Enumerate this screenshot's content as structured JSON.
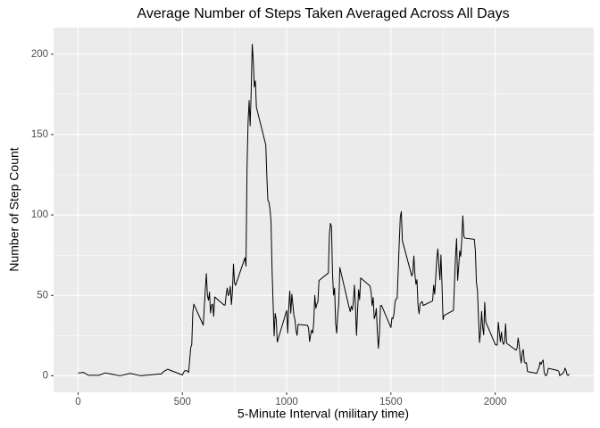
{
  "chart_data": {
    "type": "line",
    "title": "Average Number of Steps Taken Averaged Across All Days",
    "x_label": "5-Minute Interval (military time)",
    "y_label": "Number of Step Count",
    "x": [
      0,
      25,
      50,
      100,
      130,
      200,
      250,
      300,
      400,
      410,
      430,
      440,
      450,
      500,
      510,
      520,
      530,
      540,
      545,
      550,
      555,
      600,
      610,
      615,
      620,
      625,
      630,
      635,
      640,
      645,
      650,
      655,
      700,
      705,
      710,
      715,
      720,
      725,
      730,
      735,
      740,
      745,
      750,
      755,
      800,
      805,
      810,
      815,
      820,
      825,
      830,
      835,
      840,
      845,
      850,
      855,
      900,
      905,
      910,
      915,
      920,
      925,
      930,
      935,
      940,
      945,
      950,
      955,
      1000,
      1005,
      1010,
      1015,
      1020,
      1025,
      1030,
      1035,
      1040,
      1045,
      1050,
      1055,
      1100,
      1105,
      1110,
      1115,
      1120,
      1125,
      1130,
      1135,
      1140,
      1145,
      1150,
      1155,
      1200,
      1205,
      1210,
      1215,
      1220,
      1225,
      1230,
      1235,
      1240,
      1245,
      1250,
      1255,
      1300,
      1305,
      1310,
      1315,
      1320,
      1325,
      1330,
      1335,
      1340,
      1345,
      1350,
      1355,
      1400,
      1405,
      1410,
      1415,
      1420,
      1425,
      1430,
      1435,
      1440,
      1445,
      1450,
      1455,
      1500,
      1505,
      1510,
      1515,
      1520,
      1525,
      1530,
      1535,
      1540,
      1545,
      1550,
      1555,
      1600,
      1605,
      1610,
      1615,
      1620,
      1625,
      1630,
      1635,
      1640,
      1645,
      1650,
      1655,
      1700,
      1705,
      1710,
      1715,
      1720,
      1725,
      1730,
      1735,
      1740,
      1745,
      1750,
      1755,
      1800,
      1805,
      1810,
      1815,
      1820,
      1825,
      1830,
      1835,
      1840,
      1845,
      1850,
      1855,
      1900,
      1905,
      1910,
      1915,
      1920,
      1925,
      1930,
      1935,
      1940,
      1945,
      1950,
      1955,
      2000,
      2005,
      2010,
      2015,
      2020,
      2025,
      2030,
      2035,
      2040,
      2045,
      2050,
      2055,
      2100,
      2105,
      2110,
      2115,
      2120,
      2125,
      2130,
      2135,
      2140,
      2145,
      2150,
      2155,
      2200,
      2205,
      2210,
      2215,
      2220,
      2225,
      2230,
      2235,
      2240,
      2245,
      2250,
      2255,
      2300,
      2305,
      2310,
      2315,
      2320,
      2325,
      2330,
      2335,
      2340,
      2345,
      2350,
      2355
    ],
    "series": [
      {
        "name": "steps",
        "color": "#000000",
        "values": [
          1.7,
          2.1,
          0.3,
          0.3,
          1.8,
          0,
          1.5,
          0,
          1.2,
          2.6,
          4.1,
          3.5,
          3,
          0.5,
          3,
          3.3,
          2.1,
          17.5,
          19.5,
          39.5,
          44.5,
          31.5,
          53.8,
          63.5,
          50,
          47,
          52,
          39,
          44,
          44.5,
          37,
          49,
          44,
          44,
          50.5,
          54.5,
          49.9,
          50.9,
          55.7,
          44.3,
          52.3,
          69.5,
          57.8,
          56.2,
          73.4,
          68.2,
          129.4,
          157.5,
          171.2,
          155.4,
          177.3,
          206.2,
          195.9,
          179.6,
          183.4,
          167,
          143.5,
          124,
          109,
          108,
          103.7,
          96,
          66.2,
          45.2,
          24.8,
          38.8,
          35,
          21,
          40.6,
          26.5,
          42.4,
          52.7,
          38.9,
          50.8,
          44.3,
          37.4,
          34.7,
          28.3,
          25.1,
          31.9,
          31.4,
          29.7,
          21.3,
          25.5,
          28.4,
          26.5,
          33.4,
          50,
          42,
          44.6,
          46,
          59.2,
          63.9,
          87.7,
          94.8,
          92.8,
          63.4,
          50.2,
          54.5,
          32.4,
          26.5,
          37.7,
          45,
          67.3,
          42.3,
          39.9,
          43.3,
          41,
          46.2,
          56.4,
          42.8,
          25.1,
          40,
          53.5,
          47.3,
          60.8,
          55.8,
          52,
          43.6,
          48.7,
          35.5,
          37.5,
          41.8,
          27.5,
          17.1,
          26.1,
          43.6,
          43.8,
          30,
          36.1,
          35.5,
          38.8,
          46,
          47.8,
          48.1,
          65.3,
          82.9,
          98.7,
          102.1,
          84,
          62.1,
          64.1,
          74.5,
          63.2,
          56.9,
          59.8,
          43.9,
          38.6,
          44.7,
          45.5,
          46.2,
          43.7,
          46.6,
          56.3,
          50.7,
          61.2,
          72.7,
          78.9,
          68.9,
          59.7,
          75.1,
          56.5,
          34.8,
          37.5,
          40.7,
          58,
          74.7,
          85.3,
          59.3,
          67.8,
          77.7,
          74.2,
          85.3,
          99.5,
          86.6,
          85.6,
          84.9,
          77.8,
          58,
          53.4,
          36.3,
          20.7,
          27.4,
          40,
          30.2,
          25.5,
          45.7,
          33.5,
          19.6,
          19,
          19.3,
          33.3,
          26.8,
          21.2,
          27.3,
          21.3,
          19.5,
          21.3,
          32.3,
          20.2,
          15.9,
          17.2,
          23.5,
          19.2,
          12.5,
          8,
          14.7,
          16.3,
          8.7,
          7.8,
          8.1,
          2.6,
          1.5,
          3.7,
          4.8,
          8.5,
          7.1,
          8.7,
          9.8,
          2.2,
          0.3,
          0.1,
          1.6,
          4.6,
          3.3,
          2.8,
          0,
          0.8,
          1,
          1.6,
          2.6,
          4.7,
          3.3,
          0.6,
          0.2,
          1.1
        ]
      }
    ],
    "xlim": [
      -117.75,
      2472.75
    ],
    "xticks": [
      0,
      500,
      1000,
      1500,
      2000
    ],
    "ylim": [
      -10.3,
      216.5
    ],
    "yticks": [
      0,
      50,
      100,
      150,
      200
    ],
    "grid": true
  }
}
